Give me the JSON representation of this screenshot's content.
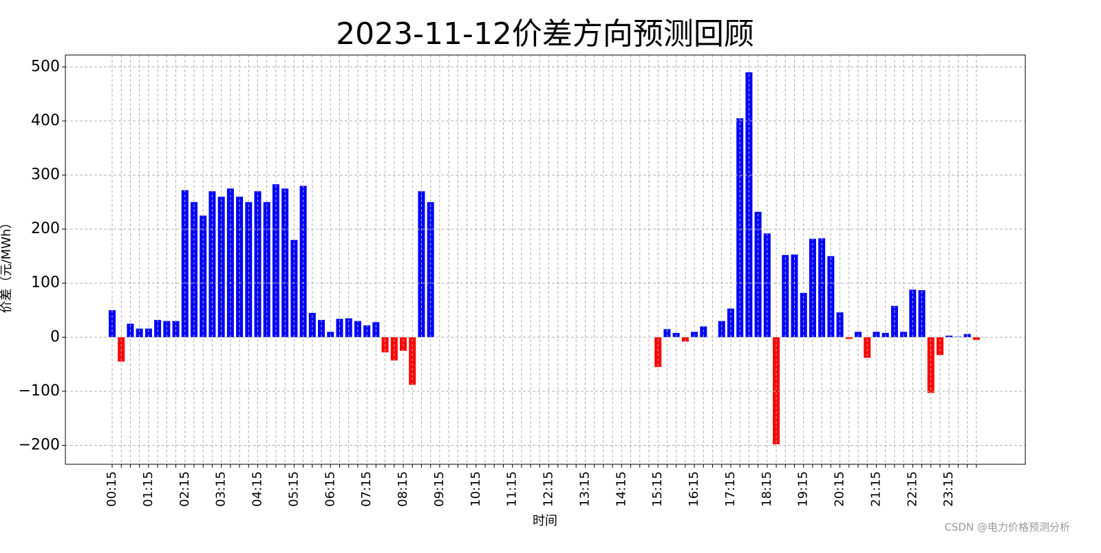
{
  "chart_data": {
    "type": "bar",
    "title": "2023-11-12价差方向预测回顾",
    "x_label": "时间",
    "y_label": "价差（元/MWh）",
    "watermark": "CSDN @电力价格预测分析",
    "categories": [
      "00:15",
      null,
      null,
      null,
      "01:15",
      null,
      null,
      null,
      "02:15",
      null,
      null,
      null,
      "03:15",
      null,
      null,
      null,
      "04:15",
      null,
      null,
      null,
      "05:15",
      null,
      null,
      null,
      "06:15",
      null,
      null,
      null,
      "07:15",
      null,
      null,
      null,
      "08:15",
      null,
      null,
      null,
      "09:15",
      null,
      null,
      null,
      "10:15",
      null,
      null,
      null,
      "11:15",
      null,
      null,
      null,
      "12:15",
      null,
      null,
      null,
      "13:15",
      null,
      null,
      null,
      "14:15",
      null,
      null,
      null,
      "15:15",
      null,
      null,
      null,
      "16:15",
      null,
      null,
      null,
      "17:15",
      null,
      null,
      null,
      "18:15",
      null,
      null,
      null,
      "19:15",
      null,
      null,
      null,
      "20:15",
      null,
      null,
      null,
      "21:15",
      null,
      null,
      null,
      "22:15",
      null,
      null,
      null,
      "23:15",
      null,
      null,
      null
    ],
    "values": [
      50,
      -45,
      25,
      16,
      16,
      32,
      30,
      30,
      272,
      250,
      225,
      270,
      260,
      275,
      260,
      250,
      270,
      250,
      283,
      275,
      180,
      280,
      45,
      32,
      10,
      34,
      35,
      30,
      22,
      28,
      -28,
      -43,
      -25,
      -88,
      270,
      250,
      null,
      null,
      null,
      null,
      null,
      null,
      null,
      null,
      null,
      null,
      null,
      null,
      null,
      null,
      null,
      null,
      null,
      null,
      null,
      null,
      null,
      null,
      null,
      null,
      -55,
      15,
      8,
      -8,
      10,
      20,
      null,
      30,
      53,
      405,
      490,
      232,
      192,
      -198,
      152,
      153,
      82,
      182,
      183,
      150,
      46,
      -3,
      10,
      -38,
      10,
      8,
      58,
      10,
      88,
      87,
      -103,
      -33,
      3,
      1,
      6,
      -5
    ],
    "positive_color": "#0000ff",
    "negative_color": "#ff0000",
    "ylim": [
      -235,
      522
    ],
    "yticks": [
      {
        "value": -200,
        "label": "−200"
      },
      {
        "value": -100,
        "label": "−100"
      },
      0,
      100,
      200,
      300,
      400,
      500
    ],
    "grid": true
  }
}
